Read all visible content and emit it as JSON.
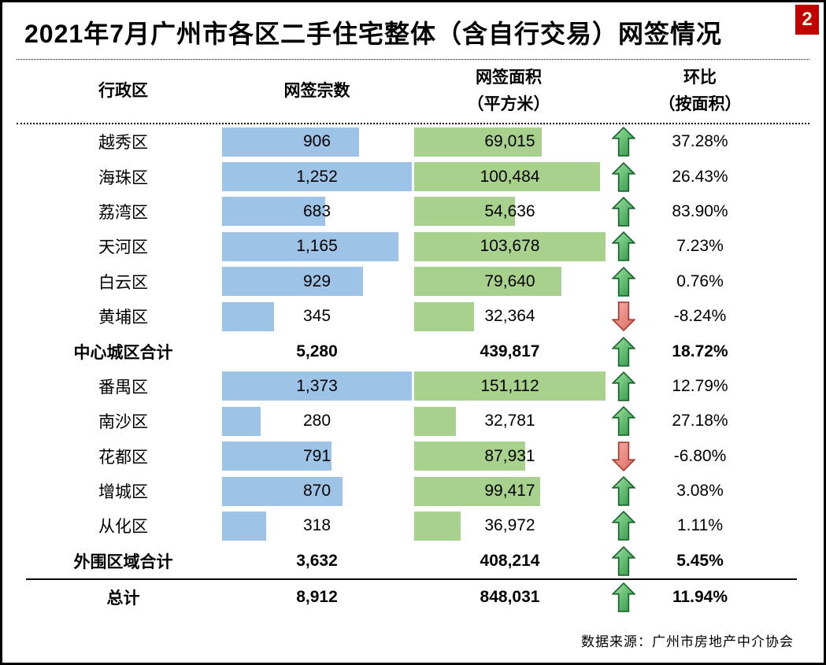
{
  "title": "2021年7月广州市各区二手住宅整体（含自行交易）网签情况",
  "badge": "2",
  "header": {
    "district": "行政区",
    "count": "网签宗数",
    "area_line1": "网签面积",
    "area_line2": "（平方米）",
    "mom_line1": "环比",
    "mom_line2": "（按面积）"
  },
  "colors": {
    "bar_blue": "#9DC3E6",
    "bar_green": "#A9D18E",
    "badge_red": "#C00000",
    "arrow_up_fill_light": "#9FE3A4",
    "arrow_up_fill_dark": "#2C9440",
    "arrow_up_stroke": "#17652B",
    "arrow_down_fill_light": "#F5AFA9",
    "arrow_down_fill_dark": "#DB6A60",
    "arrow_down_stroke": "#A63A32"
  },
  "bar_scale": {
    "count_max_center": 1252,
    "count_max_outer": 1373,
    "area_max_center": 103678,
    "area_max_outer": 151112
  },
  "rows": [
    {
      "district": "越秀区",
      "count": "906",
      "count_val": 906,
      "area": "69,015",
      "area_val": 69015,
      "trend": "up",
      "pct": "37.28%",
      "group": "center",
      "type": "district"
    },
    {
      "district": "海珠区",
      "count": "1,252",
      "count_val": 1252,
      "area": "100,484",
      "area_val": 100484,
      "trend": "up",
      "pct": "26.43%",
      "group": "center",
      "type": "district"
    },
    {
      "district": "荔湾区",
      "count": "683",
      "count_val": 683,
      "area": "54,636",
      "area_val": 54636,
      "trend": "up",
      "pct": "83.90%",
      "group": "center",
      "type": "district"
    },
    {
      "district": "天河区",
      "count": "1,165",
      "count_val": 1165,
      "area": "103,678",
      "area_val": 103678,
      "trend": "up",
      "pct": "7.23%",
      "group": "center",
      "type": "district"
    },
    {
      "district": "白云区",
      "count": "929",
      "count_val": 929,
      "area": "79,640",
      "area_val": 79640,
      "trend": "up",
      "pct": "0.76%",
      "group": "center",
      "type": "district"
    },
    {
      "district": "黄埔区",
      "count": "345",
      "count_val": 345,
      "area": "32,364",
      "area_val": 32364,
      "trend": "down",
      "pct": "-8.24%",
      "group": "center",
      "type": "district"
    },
    {
      "district": "中心城区合计",
      "count": "5,280",
      "count_val": 5280,
      "area": "439,817",
      "area_val": 439817,
      "trend": "up",
      "pct": "18.72%",
      "group": "center",
      "type": "summary"
    },
    {
      "district": "番禺区",
      "count": "1,373",
      "count_val": 1373,
      "area": "151,112",
      "area_val": 151112,
      "trend": "up",
      "pct": "12.79%",
      "group": "outer",
      "type": "district"
    },
    {
      "district": "南沙区",
      "count": "280",
      "count_val": 280,
      "area": "32,781",
      "area_val": 32781,
      "trend": "up",
      "pct": "27.18%",
      "group": "outer",
      "type": "district"
    },
    {
      "district": "花都区",
      "count": "791",
      "count_val": 791,
      "area": "87,931",
      "area_val": 87931,
      "trend": "down",
      "pct": "-6.80%",
      "group": "outer",
      "type": "district"
    },
    {
      "district": "增城区",
      "count": "870",
      "count_val": 870,
      "area": "99,417",
      "area_val": 99417,
      "trend": "up",
      "pct": "3.08%",
      "group": "outer",
      "type": "district"
    },
    {
      "district": "从化区",
      "count": "318",
      "count_val": 318,
      "area": "36,972",
      "area_val": 36972,
      "trend": "up",
      "pct": "1.11%",
      "group": "outer",
      "type": "district"
    },
    {
      "district": "外围区域合计",
      "count": "3,632",
      "count_val": 3632,
      "area": "408,214",
      "area_val": 408214,
      "trend": "up",
      "pct": "5.45%",
      "group": "outer",
      "type": "summary"
    },
    {
      "district": "总计",
      "count": "8,912",
      "count_val": 8912,
      "area": "848,031",
      "area_val": 848031,
      "trend": "up",
      "pct": "11.94%",
      "group": "all",
      "type": "total"
    }
  ],
  "footer": "数据来源：广州市房地产中介协会",
  "chart_data": {
    "type": "table",
    "title": "2021年7月广州市各区二手住宅整体（含自行交易）网签情况",
    "columns": [
      "行政区",
      "网签宗数",
      "网签面积（平方米）",
      "环比（按面积）"
    ],
    "categories": [
      "越秀区",
      "海珠区",
      "荔湾区",
      "天河区",
      "白云区",
      "黄埔区",
      "中心城区合计",
      "番禺区",
      "南沙区",
      "花都区",
      "增城区",
      "从化区",
      "外围区域合计",
      "总计"
    ],
    "series": [
      {
        "name": "网签宗数",
        "values": [
          906,
          1252,
          683,
          1165,
          929,
          345,
          5280,
          1373,
          280,
          791,
          870,
          318,
          3632,
          8912
        ]
      },
      {
        "name": "网签面积（平方米）",
        "values": [
          69015,
          100484,
          54636,
          103678,
          79640,
          32364,
          439817,
          151112,
          32781,
          87931,
          99417,
          36972,
          408214,
          848031
        ]
      },
      {
        "name": "环比（按面积）%",
        "values": [
          37.28,
          26.43,
          83.9,
          7.23,
          0.76,
          -8.24,
          18.72,
          12.79,
          27.18,
          -6.8,
          3.08,
          1.11,
          5.45,
          11.94
        ]
      }
    ],
    "notes": "数据条：网签宗数为蓝色条，网签面积为绿色条；环比以绿色上箭头/红色下箭头标示"
  }
}
